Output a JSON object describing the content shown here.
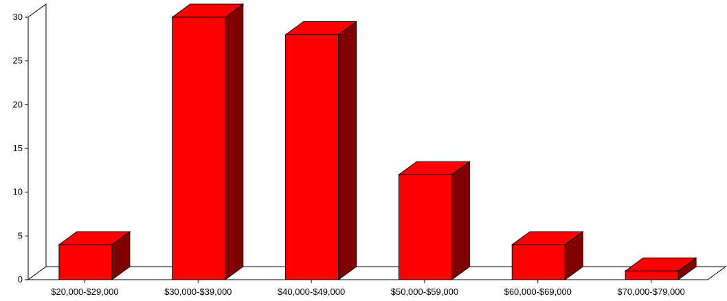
{
  "chart_data": {
    "type": "bar",
    "title": "",
    "xlabel": "",
    "ylabel": "",
    "categories": [
      "$20,000-$29,000",
      "$30,000-$39,000",
      "$40,000-$49,000",
      "$50,000-$59,000",
      "$60,000-$69,000",
      "$70,000-$79,000"
    ],
    "values": [
      4,
      30,
      28,
      12,
      4,
      1
    ],
    "ylim": [
      0,
      30
    ],
    "yticks": [
      0,
      5,
      10,
      15,
      20,
      25,
      30
    ],
    "grid": false,
    "legend": "none",
    "style": "3d",
    "colors": {
      "bar_front": "#ff0000",
      "bar_top": "#ff0000",
      "bar_side": "#800000",
      "outline": "#000000"
    }
  }
}
